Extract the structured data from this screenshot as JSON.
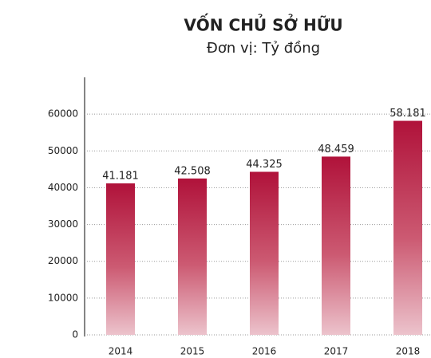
{
  "chart_data": {
    "type": "bar",
    "title": "VỐN CHỦ SỞ HỮU",
    "subtitle": "Đơn vị: Tỷ đồng",
    "categories": [
      "2014",
      "2015",
      "2016",
      "2017",
      "2018"
    ],
    "values": [
      41181,
      42508,
      44325,
      48459,
      58181
    ],
    "value_labels": [
      "41.181",
      "42.508",
      "44.325",
      "48.459",
      "58.181"
    ],
    "color": "#b5123a",
    "ylim": [
      0,
      70000
    ],
    "yticks": [
      0,
      10000,
      20000,
      30000,
      40000,
      50000,
      60000
    ],
    "grid": true
  }
}
